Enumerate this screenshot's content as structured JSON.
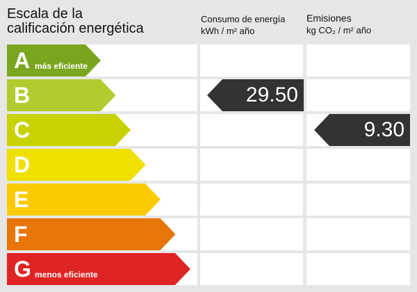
{
  "title": [
    "Escala de la",
    "calificación energética"
  ],
  "consumo": {
    "label": "Consumo de energía",
    "unit": "kWh / m² año",
    "value": "29.50",
    "rating": "B"
  },
  "emisiones": {
    "label": "Emisiones",
    "unit": "kg CO₂ / m² año",
    "value": "9.30",
    "rating": "C"
  },
  "bands": [
    {
      "letter": "A",
      "sub": "más eficiente",
      "color": "#79a61e"
    },
    {
      "letter": "B",
      "sub": "",
      "color": "#b3cb2e"
    },
    {
      "letter": "C",
      "sub": "",
      "color": "#c8d200"
    },
    {
      "letter": "D",
      "sub": "",
      "color": "#efe000"
    },
    {
      "letter": "E",
      "sub": "",
      "color": "#fbcb00"
    },
    {
      "letter": "F",
      "sub": "",
      "color": "#e87508"
    },
    {
      "letter": "G",
      "sub": "menos eficiente",
      "color": "#e02323"
    }
  ],
  "value_arrow_color": "#333333"
}
